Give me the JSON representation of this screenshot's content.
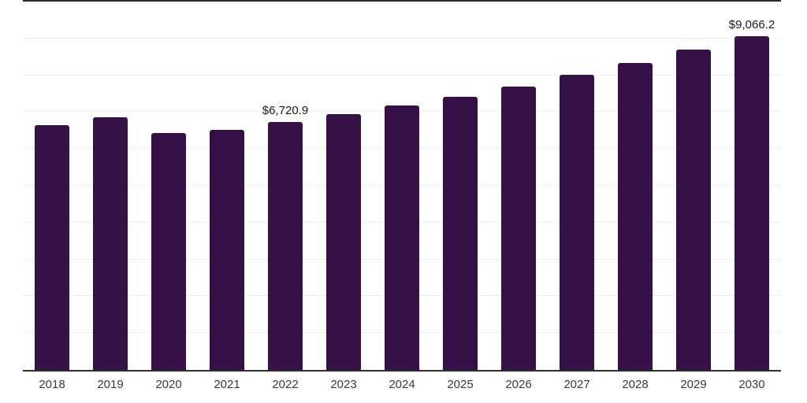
{
  "chart_data": {
    "type": "bar",
    "title": "",
    "xlabel": "",
    "ylabel": "",
    "categories": [
      "2018",
      "2019",
      "2020",
      "2021",
      "2022",
      "2023",
      "2024",
      "2025",
      "2026",
      "2027",
      "2028",
      "2029",
      "2030"
    ],
    "values": [
      6650,
      6860,
      6440,
      6520,
      6720.9,
      6950,
      7180,
      7410,
      7700,
      8020,
      8340,
      8690,
      9066.2
    ],
    "data_labels": {
      "2022": "$6,720.9",
      "2030": "$9,066.2"
    },
    "ylim": [
      0,
      10000
    ],
    "grid_step": 1000,
    "grid": true,
    "legend": false,
    "y_axis_labels_visible": false,
    "colors": {
      "bar": "#351147",
      "top_border": "#2b2b2b",
      "axis_line": "#2e2e2e",
      "gridline": "#f0f0f1",
      "value_label_text": "#1a1a1a",
      "tick_label_text": "#3a3a3a",
      "background": "#ffffff"
    }
  }
}
